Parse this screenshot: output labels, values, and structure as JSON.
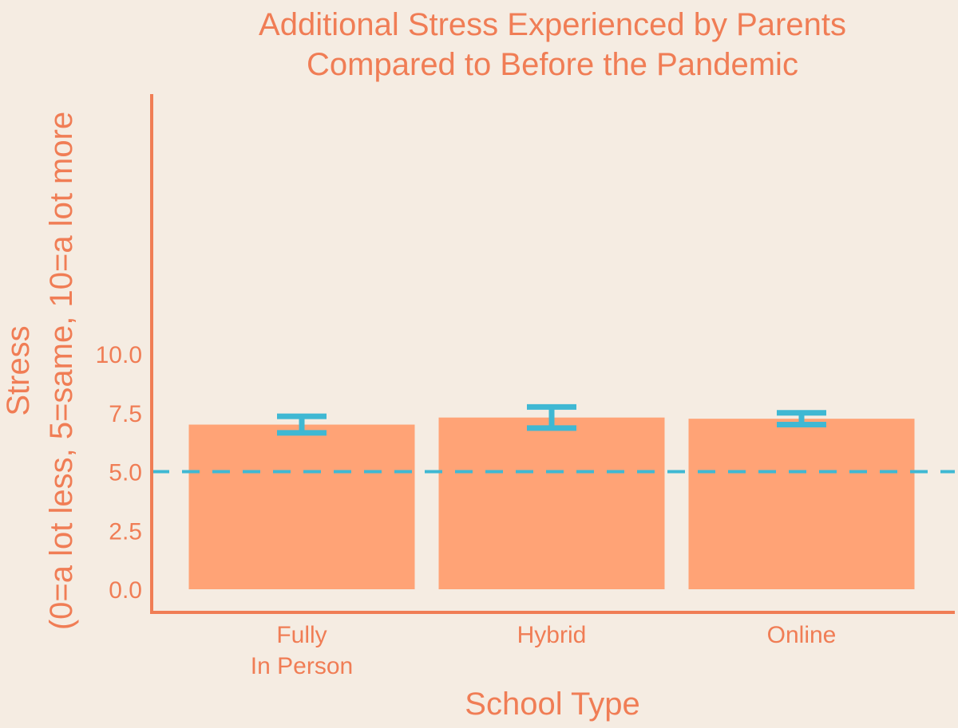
{
  "chart_data": {
    "type": "bar",
    "title": [
      "Additional Stress Experienced by Parents",
      "Compared to Before the Pandemic"
    ],
    "xlabel": "School Type",
    "ylabel": [
      "Stress",
      "(0=a lot less, 5=same, 10=a lot more"
    ],
    "categories": [
      [
        "Fully",
        "In Person"
      ],
      [
        "Hybrid"
      ],
      [
        "Online"
      ]
    ],
    "values": [
      7.0,
      7.3,
      7.25
    ],
    "error_low": [
      6.65,
      6.85,
      7.0
    ],
    "error_high": [
      7.35,
      7.75,
      7.5
    ],
    "reference_line": 5.0,
    "ylim": [
      0,
      10.3
    ],
    "yticks": [
      0.0,
      2.5,
      5.0,
      7.5,
      10.0
    ],
    "ytick_labels": [
      "0.0",
      "2.5",
      "5.0",
      "7.5",
      "10.0"
    ],
    "grid": false,
    "colors": {
      "bar": "#ffa376",
      "error_bar": "#3fb8d3",
      "reference_line": "#3fb8d3",
      "text": "#f07d55",
      "background": "#f5ece2"
    }
  }
}
